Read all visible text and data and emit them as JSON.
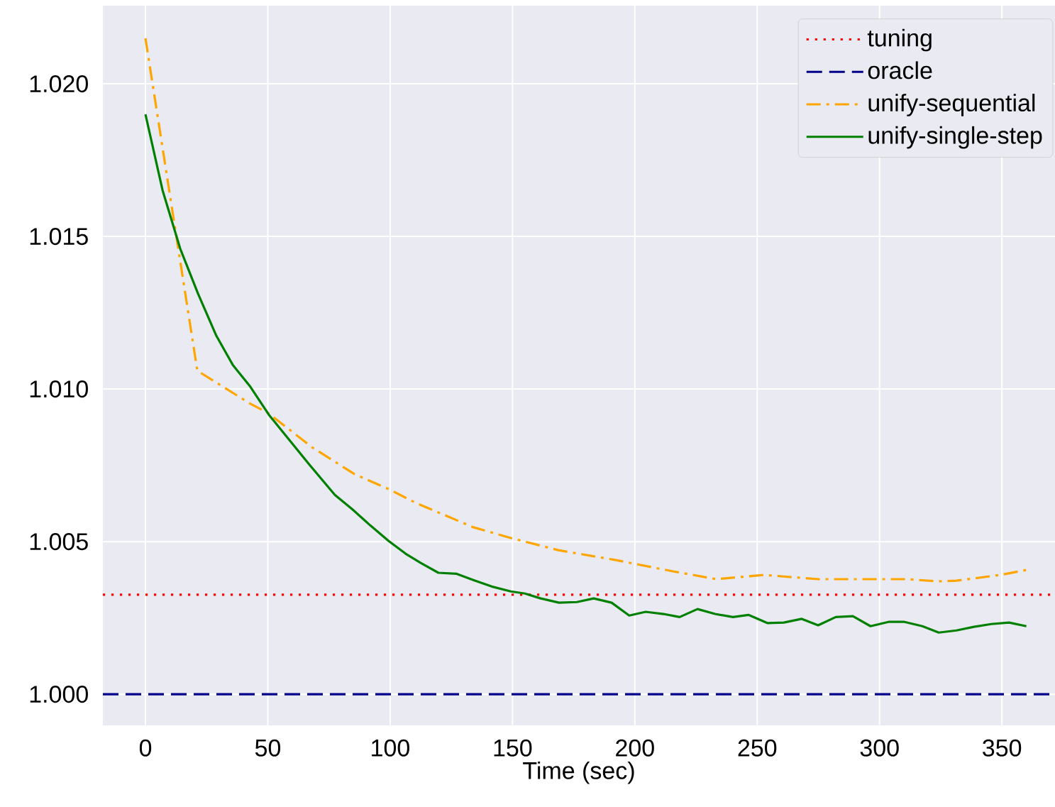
{
  "chart_data": {
    "type": "line",
    "xlabel": "Time (sec)",
    "xlim": [
      -17.4,
      371.7
    ],
    "ylim": [
      0.99898,
      1.02256
    ],
    "xticks": [
      0,
      50,
      100,
      150,
      200,
      250,
      300,
      350
    ],
    "yticks": [
      {
        "value": 1.0,
        "label": "1.000"
      },
      {
        "value": 1.005,
        "label": "1.005"
      },
      {
        "value": 1.01,
        "label": "1.010"
      },
      {
        "value": 1.015,
        "label": "1.015"
      },
      {
        "value": 1.02,
        "label": "1.020"
      }
    ],
    "grid": true,
    "legend": "top right",
    "marker": "none",
    "ref_lines": [
      {
        "axis": "y",
        "value": 1.00326,
        "label": "tuning",
        "color": "#ff0000",
        "line_style": "dotted"
      },
      {
        "axis": "y",
        "value": 1.0,
        "label": "oracle",
        "color": "#00008b",
        "line_style": "dashed"
      }
    ],
    "series": [
      {
        "name": "unify-sequential",
        "color": "#ffa500",
        "line_style": "dashdot",
        "x": [
          0,
          21.2,
          42.6,
          50.2,
          68.1,
          85.5,
          100.0,
          110.2,
          134.0,
          149.3,
          168.7,
          191.9,
          216.0,
          233.4,
          252.8,
          274.9,
          310.8,
          324.2,
          331.4,
          349.4,
          360
        ],
        "values": [
          1.02149,
          1.0106,
          1.00953,
          1.00921,
          1.00809,
          1.00721,
          1.0067,
          1.00628,
          1.00547,
          1.00512,
          1.00472,
          1.0044,
          1.00402,
          1.00377,
          1.00391,
          1.00377,
          1.00377,
          1.0037,
          1.00372,
          1.00391,
          1.00407
        ]
      },
      {
        "name": "unify-single-step",
        "color": "#008000",
        "line_style": "solid",
        "x": [
          0,
          7.0,
          14.2,
          21.5,
          29.0,
          35.7,
          42.9,
          50.4,
          66.9,
          77.4,
          84.7,
          91.9,
          99.4,
          106.4,
          112.5,
          119.7,
          127.0,
          134.0,
          141.5,
          149.3,
          155.1,
          161.5,
          169.0,
          176.3,
          183.2,
          190.5,
          197.7,
          204.4,
          211.7,
          218.3,
          225.6,
          232.8,
          240.1,
          246.4,
          254.3,
          260.9,
          268.2,
          274.9,
          282.1,
          289.1,
          296.3,
          303.6,
          310.2,
          317.5,
          324.2,
          331.4,
          338.6,
          345.6,
          352.9,
          360
        ],
        "values": [
          1.019,
          1.01651,
          1.0146,
          1.01312,
          1.01174,
          1.01079,
          1.01007,
          1.00916,
          1.00753,
          1.00653,
          1.00605,
          1.00553,
          1.00502,
          1.0046,
          1.0043,
          1.00398,
          1.00395,
          1.00374,
          1.00353,
          1.00337,
          1.0033,
          1.00314,
          1.003,
          1.00302,
          1.00314,
          1.003,
          1.00258,
          1.0027,
          1.00263,
          1.00253,
          1.00279,
          1.00263,
          1.00253,
          1.0026,
          1.00233,
          1.00235,
          1.00247,
          1.00226,
          1.00253,
          1.00256,
          1.00223,
          1.00237,
          1.00237,
          1.00223,
          1.00202,
          1.00209,
          1.00221,
          1.0023,
          1.00235,
          1.00223
        ]
      }
    ]
  }
}
